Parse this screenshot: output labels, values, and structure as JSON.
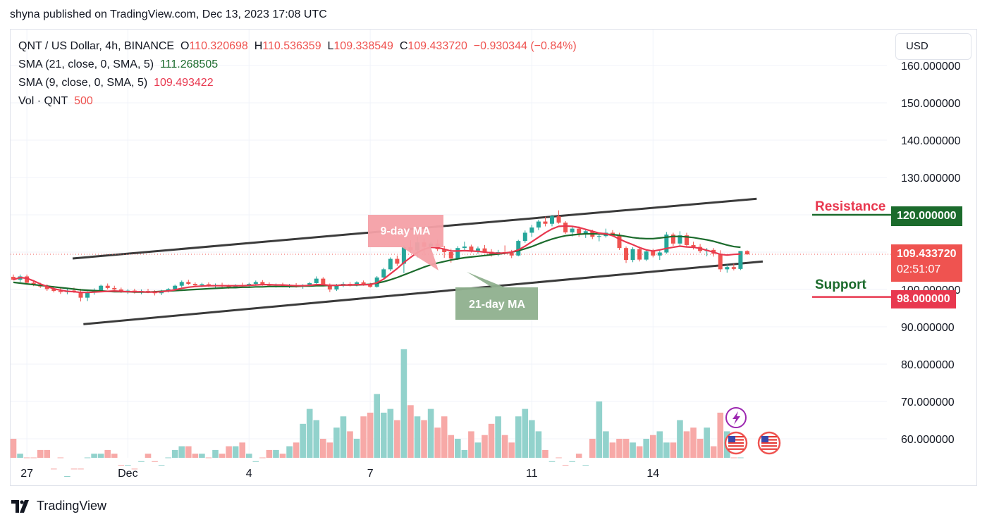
{
  "header": {
    "published": "shyna published on TradingView.com, Dec 13, 2023 17:08 UTC"
  },
  "legend": {
    "symbol": "QNT / US Dollar, 4h, BINANCE",
    "o_label": "O",
    "o_value": "110.320698",
    "h_label": "H",
    "h_value": "110.536359",
    "l_label": "L",
    "l_value": "109.338549",
    "c_label": "C",
    "c_value": "109.433720",
    "change": "−0.930344 (−0.84%)",
    "sma21_label": "SMA (21, close, 0, SMA, 5)",
    "sma21_value": "111.268505",
    "sma9_label": "SMA (9, close, 0, SMA, 5)",
    "sma9_value": "109.493422",
    "vol_label": "Vol · QNT",
    "vol_value": "500"
  },
  "currency_button": "USD",
  "price_tags": {
    "resistance": "120.000000",
    "current": "109.433720",
    "countdown": "02:51:07",
    "support": "98.000000"
  },
  "annotations": {
    "resistance": "Resistance",
    "support": "Support",
    "ma9": "9-day MA",
    "ma21": "21-day MA"
  },
  "footer": {
    "brand": "TradingView"
  },
  "colors": {
    "up": "#26a69a",
    "down": "#ef5350",
    "vol_up": "#92d2cc",
    "vol_down": "#f7a9a7",
    "sma9": "#e8384f",
    "sma21": "#1b6b2c",
    "resistance": "#1b6b2c",
    "support": "#e8384f",
    "channel": "#3b3b3b"
  },
  "chart_data": {
    "type": "candlestick",
    "y_axis_ticks": [
      "160.000000",
      "150.000000",
      "140.000000",
      "130.000000",
      "120.000000",
      "110.000000",
      "100.000000",
      "90.000000",
      "80.000000",
      "70.000000",
      "60.000000"
    ],
    "y_tick_values": [
      160,
      150,
      140,
      130,
      120,
      110,
      100,
      90,
      80,
      70,
      60
    ],
    "x_axis_labels": [
      {
        "label": "27",
        "index": 2
      },
      {
        "label": "Dec",
        "index": 17
      },
      {
        "label": "4",
        "index": 35
      },
      {
        "label": "7",
        "index": 53
      },
      {
        "label": "11",
        "index": 77
      },
      {
        "label": "14",
        "index": 95
      }
    ],
    "ylim": [
      55,
      165
    ],
    "candles": [
      [
        103.4,
        104,
        102.5,
        102.6
      ],
      [
        102.6,
        104,
        102,
        103.5
      ],
      [
        103.5,
        104,
        101.6,
        101.8
      ],
      [
        101.8,
        102.5,
        100.9,
        101.2
      ],
      [
        101.2,
        101.8,
        100.4,
        100.8
      ],
      [
        100.8,
        101.4,
        99.6,
        100.1
      ],
      [
        100.1,
        100.9,
        99.2,
        99.6
      ],
      [
        99.6,
        100.3,
        98.8,
        99.3
      ],
      [
        99.3,
        100.1,
        98.7,
        99.7
      ],
      [
        99.7,
        100.5,
        99.1,
        99.4
      ],
      [
        99.4,
        100.2,
        96.8,
        97.8
      ],
      [
        97.8,
        99.5,
        96.9,
        99.2
      ],
      [
        99.2,
        100.3,
        98.6,
        99.7
      ],
      [
        99.7,
        101.3,
        99.4,
        101.0
      ],
      [
        101.0,
        101.6,
        100.0,
        100.4
      ],
      [
        100.4,
        101.0,
        99.5,
        100.0
      ],
      [
        100.0,
        100.5,
        99.1,
        99.4
      ],
      [
        99.4,
        100.1,
        98.8,
        99.7
      ],
      [
        99.7,
        100.2,
        98.9,
        99.3
      ],
      [
        99.3,
        100.0,
        98.7,
        99.6
      ],
      [
        99.6,
        100.2,
        99.0,
        99.2
      ],
      [
        99.2,
        99.8,
        98.4,
        99.0
      ],
      [
        99.0,
        99.9,
        98.5,
        99.6
      ],
      [
        99.6,
        100.4,
        99.2,
        100.1
      ],
      [
        100.1,
        101.3,
        99.9,
        101.0
      ],
      [
        101.0,
        102.4,
        100.5,
        102.0
      ],
      [
        102.0,
        102.6,
        101.2,
        101.5
      ],
      [
        101.5,
        101.9,
        100.8,
        101.1
      ],
      [
        101.1,
        101.8,
        100.6,
        101.4
      ],
      [
        101.4,
        101.9,
        100.7,
        101.0
      ],
      [
        101.0,
        101.6,
        100.3,
        101.2
      ],
      [
        101.2,
        101.8,
        100.5,
        100.9
      ],
      [
        100.9,
        101.3,
        100.2,
        100.6
      ],
      [
        100.6,
        101.4,
        100.3,
        101.2
      ],
      [
        101.2,
        101.8,
        100.8,
        101.0
      ],
      [
        101.0,
        101.8,
        100.4,
        101.5
      ],
      [
        101.5,
        102.4,
        101.0,
        102.0
      ],
      [
        102.0,
        102.5,
        101.0,
        101.4
      ],
      [
        101.4,
        101.9,
        100.7,
        101.0
      ],
      [
        101.0,
        101.6,
        100.5,
        101.3
      ],
      [
        101.3,
        101.8,
        100.6,
        100.9
      ],
      [
        100.9,
        101.5,
        100.4,
        101.1
      ],
      [
        101.1,
        101.7,
        100.5,
        100.8
      ],
      [
        100.8,
        101.4,
        100.2,
        101.2
      ],
      [
        101.2,
        102.0,
        100.9,
        101.7
      ],
      [
        101.7,
        103.5,
        101.3,
        102.9
      ],
      [
        102.9,
        103.3,
        101.0,
        101.2
      ],
      [
        101.2,
        101.6,
        99.3,
        100.0
      ],
      [
        100.0,
        101.5,
        99.6,
        101.2
      ],
      [
        101.2,
        102.0,
        100.6,
        101.5
      ],
      [
        101.5,
        102.0,
        100.8,
        101.1
      ],
      [
        101.1,
        102.2,
        100.8,
        101.9
      ],
      [
        101.9,
        102.4,
        101.0,
        101.3
      ],
      [
        101.3,
        101.8,
        100.5,
        100.7
      ],
      [
        100.7,
        103.6,
        100.5,
        103.2
      ],
      [
        103.2,
        105.8,
        102.8,
        105.4
      ],
      [
        105.4,
        108.6,
        104.9,
        108.2
      ],
      [
        108.2,
        109.1,
        106.3,
        106.9
      ],
      [
        106.9,
        111.8,
        104.4,
        111.3
      ],
      [
        111.3,
        113.2,
        109.8,
        110.5
      ],
      [
        110.5,
        114.2,
        108.6,
        112.6
      ],
      [
        112.6,
        113.7,
        109.1,
        111.4
      ],
      [
        111.4,
        112.8,
        110.0,
        112.3
      ],
      [
        112.3,
        113.3,
        110.3,
        110.8
      ],
      [
        110.8,
        111.7,
        108.5,
        110.0
      ],
      [
        110.0,
        110.9,
        107.2,
        108.3
      ],
      [
        108.3,
        111.6,
        107.9,
        111.1
      ],
      [
        111.1,
        112.8,
        110.4,
        111.5
      ],
      [
        111.5,
        112.0,
        109.9,
        110.4
      ],
      [
        110.4,
        111.5,
        109.6,
        111.0
      ],
      [
        111.0,
        111.9,
        109.8,
        110.1
      ],
      [
        110.1,
        110.8,
        108.8,
        109.3
      ],
      [
        109.3,
        110.6,
        108.9,
        110.0
      ],
      [
        110.0,
        111.8,
        109.6,
        109.8
      ],
      [
        109.8,
        110.6,
        108.4,
        109.1
      ],
      [
        109.1,
        113.3,
        108.9,
        113.0
      ],
      [
        113.0,
        115.8,
        112.5,
        115.2
      ],
      [
        115.2,
        117.3,
        114.1,
        116.6
      ],
      [
        116.6,
        118.7,
        115.9,
        118.2
      ],
      [
        118.2,
        119.5,
        116.9,
        117.6
      ],
      [
        117.6,
        120.0,
        116.9,
        119.6
      ],
      [
        119.6,
        121.2,
        117.6,
        117.9
      ],
      [
        117.9,
        118.3,
        114.9,
        115.3
      ],
      [
        115.3,
        117.0,
        114.2,
        116.3
      ],
      [
        116.3,
        116.9,
        114.1,
        115.0
      ],
      [
        115.0,
        116.1,
        113.8,
        115.6
      ],
      [
        115.6,
        116.0,
        113.5,
        114.1
      ],
      [
        114.1,
        115.0,
        112.9,
        114.3
      ],
      [
        114.3,
        116.3,
        113.9,
        115.2
      ],
      [
        115.2,
        115.9,
        114.2,
        114.6
      ],
      [
        114.6,
        115.2,
        110.6,
        111.1
      ],
      [
        111.1,
        111.5,
        107.1,
        107.9
      ],
      [
        107.9,
        111.3,
        107.3,
        110.8
      ],
      [
        110.8,
        111.5,
        107.5,
        108.0
      ],
      [
        108.0,
        110.5,
        107.6,
        110.2
      ],
      [
        110.2,
        110.9,
        108.6,
        109.1
      ],
      [
        109.1,
        110.4,
        107.9,
        109.9
      ],
      [
        109.9,
        115.4,
        109.6,
        114.7
      ],
      [
        114.7,
        115.2,
        111.7,
        112.3
      ],
      [
        112.3,
        115.6,
        111.6,
        114.5
      ],
      [
        114.5,
        115.2,
        111.5,
        111.9
      ],
      [
        111.9,
        112.8,
        110.7,
        111.4
      ],
      [
        111.4,
        112.2,
        109.8,
        110.3
      ],
      [
        110.3,
        111.1,
        108.9,
        110.6
      ],
      [
        110.6,
        111.1,
        108.8,
        109.6
      ],
      [
        109.6,
        110.5,
        104.7,
        105.4
      ],
      [
        105.4,
        106.7,
        104.5,
        106.0
      ],
      [
        106.0,
        106.9,
        105.1,
        105.5
      ],
      [
        105.5,
        110.3,
        105.2,
        110.3
      ],
      [
        110.3,
        110.5,
        109.3,
        109.4
      ]
    ],
    "sma9": [
      102.6,
      103.2,
      103.0,
      102.3,
      101.5,
      100.8,
      100.2,
      99.8,
      99.5,
      99.4,
      99.2,
      99.2,
      99.3,
      99.4,
      99.5,
      99.6,
      99.5,
      99.4,
      99.4,
      99.4,
      99.3,
      99.3,
      99.4,
      99.6,
      99.9,
      100.3,
      100.6,
      100.8,
      100.9,
      101.0,
      101.0,
      101.0,
      101.0,
      101.0,
      101.0,
      101.1,
      101.2,
      101.3,
      101.3,
      101.2,
      101.2,
      101.1,
      101.0,
      101.0,
      101.1,
      101.3,
      101.3,
      101.1,
      101.1,
      101.2,
      101.2,
      101.3,
      101.3,
      101.3,
      101.8,
      102.8,
      104.2,
      105.6,
      107.2,
      108.6,
      109.9,
      110.8,
      111.3,
      111.2,
      110.8,
      110.3,
      110.3,
      110.4,
      110.3,
      110.2,
      110.0,
      109.8,
      109.7,
      109.8,
      110.0,
      110.6,
      111.6,
      112.8,
      114.0,
      115.2,
      116.2,
      116.9,
      117.0,
      116.9,
      116.6,
      116.1,
      115.6,
      115.1,
      114.9,
      114.4,
      113.5,
      112.7,
      112.0,
      111.2,
      110.6,
      110.3,
      110.6,
      111.0,
      111.3,
      111.6,
      111.4,
      111.3,
      111.0,
      110.5,
      110.0,
      109.4,
      109.2,
      109.4,
      109.5
    ],
    "sma21": [
      101.9,
      101.7,
      101.5,
      101.3,
      101.1,
      100.9,
      100.7,
      100.5,
      100.3,
      100.1,
      99.9,
      99.8,
      99.7,
      99.6,
      99.5,
      99.4,
      99.4,
      99.4,
      99.3,
      99.3,
      99.3,
      99.4,
      99.5,
      99.6,
      99.7,
      99.8,
      99.9,
      100.0,
      100.1,
      100.2,
      100.3,
      100.4,
      100.5,
      100.5,
      100.6,
      100.6,
      100.7,
      100.7,
      100.8,
      100.8,
      100.8,
      100.8,
      100.8,
      100.9,
      100.9,
      101.0,
      101.0,
      101.1,
      101.1,
      101.2,
      101.2,
      101.2,
      101.3,
      101.4,
      101.7,
      102.1,
      102.6,
      103.2,
      103.9,
      104.6,
      105.3,
      106.0,
      106.6,
      107.1,
      107.5,
      107.9,
      108.2,
      108.5,
      108.7,
      108.9,
      109.1,
      109.3,
      109.5,
      109.7,
      110.0,
      110.4,
      110.9,
      111.5,
      112.2,
      112.9,
      113.5,
      114.0,
      114.4,
      114.6,
      114.8,
      114.9,
      114.9,
      114.9,
      114.8,
      114.7,
      114.5,
      114.2,
      113.9,
      113.7,
      113.6,
      113.6,
      113.8,
      114.0,
      114.2,
      114.2,
      114.1,
      113.9,
      113.6,
      113.3,
      112.9,
      112.4,
      111.9,
      111.5,
      111.3
    ],
    "volume": [
      60,
      56,
      55,
      55,
      57,
      57,
      52,
      55,
      50,
      52,
      52,
      55,
      56,
      56,
      57,
      56,
      53,
      53,
      52,
      54,
      56,
      54,
      53,
      55,
      57,
      58,
      58,
      56,
      56,
      55,
      57,
      56,
      58,
      58,
      59,
      56,
      54,
      55,
      57,
      57,
      56,
      58,
      59,
      64,
      68,
      65,
      60,
      59,
      63,
      66,
      62,
      60,
      66,
      67,
      72,
      67,
      68,
      65,
      84,
      69,
      66,
      65,
      68,
      63,
      66,
      61,
      60,
      57,
      62,
      59,
      61,
      64,
      66,
      61,
      59,
      66,
      68,
      65,
      62,
      57,
      54,
      55,
      53,
      54,
      56,
      53,
      60,
      70,
      62,
      59,
      60,
      60,
      59,
      58,
      60,
      61,
      62,
      59,
      59,
      65,
      62,
      63,
      60,
      63,
      58,
      67,
      62,
      55,
      55
    ],
    "channel_upper": {
      "from": [
        0,
        108.3
      ],
      "to": [
        104,
        124.3
      ]
    },
    "channel_lower": {
      "from": [
        0,
        90.7
      ],
      "to": [
        104,
        107.5
      ]
    },
    "resistance_level": 120,
    "support_level": 98,
    "current_price": 109.43372
  }
}
